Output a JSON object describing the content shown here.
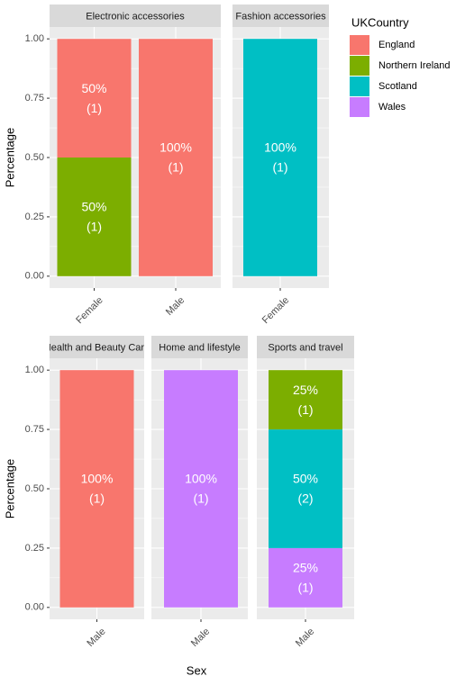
{
  "ylabel": "Percentage",
  "xlabel": "Sex",
  "ylim": [
    -0.05,
    1.05
  ],
  "yticks": [
    {
      "value": 0,
      "label": "0.00"
    },
    {
      "value": 0.25,
      "label": "0.25"
    },
    {
      "value": 0.5,
      "label": "0.50"
    },
    {
      "value": 0.75,
      "label": "0.75"
    },
    {
      "value": 1,
      "label": "1.00"
    }
  ],
  "legend": {
    "title": "UKCountry",
    "items": [
      {
        "name": "England",
        "color": "#F8766D"
      },
      {
        "name": "Northern Ireland",
        "color": "#7CAE00"
      },
      {
        "name": "Scotland",
        "color": "#00BFC4"
      },
      {
        "name": "Wales",
        "color": "#C77CFF"
      }
    ]
  },
  "chart_data": [
    {
      "type": "bar",
      "title": "Electronic accessories",
      "categories": [
        "Female",
        "Male"
      ],
      "series": [
        {
          "name": "England",
          "color": "#F8766D",
          "values": [
            0.5,
            1
          ],
          "value_labels": [
            "50%",
            "100%"
          ],
          "count_labels": [
            "(1)",
            "(1)"
          ]
        },
        {
          "name": "Northern Ireland",
          "color": "#7CAE00",
          "values": [
            0.5,
            null
          ],
          "value_labels": [
            "50%",
            null
          ],
          "count_labels": [
            "(1)",
            null
          ]
        }
      ]
    },
    {
      "type": "bar",
      "title": "Fashion accessories",
      "categories": [
        "Female"
      ],
      "series": [
        {
          "name": "Scotland",
          "color": "#00BFC4",
          "values": [
            1
          ],
          "value_labels": [
            "100%"
          ],
          "count_labels": [
            "(1)"
          ]
        }
      ]
    },
    {
      "type": "bar",
      "title": "Health and Beauty Care",
      "categories": [
        "Male"
      ],
      "series": [
        {
          "name": "England",
          "color": "#F8766D",
          "values": [
            1
          ],
          "value_labels": [
            "100%"
          ],
          "count_labels": [
            "(1)"
          ]
        }
      ]
    },
    {
      "type": "bar",
      "title": "Home and lifestyle",
      "categories": [
        "Male"
      ],
      "series": [
        {
          "name": "Wales",
          "color": "#C77CFF",
          "values": [
            1
          ],
          "value_labels": [
            "100%"
          ],
          "count_labels": [
            "(1)"
          ]
        }
      ]
    },
    {
      "type": "bar",
      "title": "Sports and travel",
      "categories": [
        "Male"
      ],
      "series": [
        {
          "name": "Northern Ireland",
          "color": "#7CAE00",
          "values": [
            0.25
          ],
          "value_labels": [
            "25%"
          ],
          "count_labels": [
            "(1)"
          ]
        },
        {
          "name": "Scotland",
          "color": "#00BFC4",
          "values": [
            0.5
          ],
          "value_labels": [
            "50%"
          ],
          "count_labels": [
            "(2)"
          ]
        },
        {
          "name": "Wales",
          "color": "#C77CFF",
          "values": [
            0.25
          ],
          "value_labels": [
            "25%"
          ],
          "count_labels": [
            "(1)"
          ]
        }
      ]
    }
  ]
}
